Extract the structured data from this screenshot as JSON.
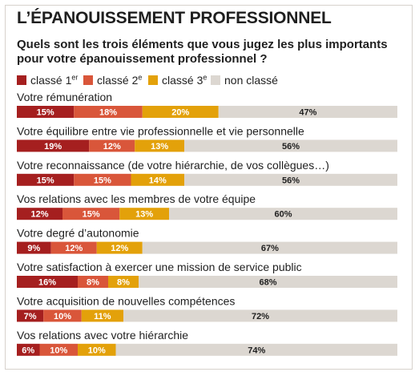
{
  "title": "L’ÉPANOUISSEMENT PROFESSIONNEL",
  "subtitle": "Quels sont les trois éléments que vous jugez les plus importants pour votre épanouissement professionnel ?",
  "legend": [
    {
      "name": "classé 1",
      "sup": "er",
      "color": "#a51f1f"
    },
    {
      "name": "classé 2",
      "sup": "e",
      "color": "#d9563a"
    },
    {
      "name": "classé 3",
      "sup": "e",
      "color": "#e3a10a"
    },
    {
      "name": "non classé",
      "sup": "",
      "color": "#dcd7d1"
    }
  ],
  "chart_data": {
    "type": "bar",
    "orientation": "horizontal",
    "stacked": true,
    "value_unit": "%",
    "categories": [
      "Votre rémunération",
      "Votre équilibre entre vie professionnelle et vie personnelle",
      "Votre reconnaissance (de votre hiérarchie, de vos collègues…)",
      "Vos relations avec les membres de votre équipe",
      "Votre degré d’autonomie",
      "Votre satisfaction à exercer une mission de service public",
      "Votre acquisition de nouvelles compétences",
      "Vos relations avec votre hiérarchie"
    ],
    "series": [
      {
        "name": "classé 1er",
        "values": [
          15,
          19,
          15,
          12,
          9,
          16,
          7,
          6
        ]
      },
      {
        "name": "classé 2e",
        "values": [
          18,
          12,
          15,
          15,
          12,
          8,
          10,
          10
        ]
      },
      {
        "name": "classé 3e",
        "values": [
          20,
          13,
          14,
          13,
          12,
          8,
          11,
          10
        ]
      },
      {
        "name": "non classé",
        "values": [
          47,
          56,
          56,
          60,
          67,
          68,
          72,
          74
        ]
      }
    ],
    "bar_labels": [
      [
        "15%",
        "18%",
        "20%",
        "47%"
      ],
      [
        "19%",
        "12%",
        "13%",
        "56%"
      ],
      [
        "15%",
        "15%",
        "14%",
        "56%"
      ],
      [
        "12%",
        "15%",
        "13%",
        "60%"
      ],
      [
        "9%",
        "12%",
        "12%",
        "67%"
      ],
      [
        "16%",
        "8%",
        "8%",
        "68%"
      ],
      [
        "7%",
        "10%",
        "11%",
        "72%"
      ],
      [
        "6%",
        "10%",
        "10%",
        "74%"
      ]
    ],
    "xlim": [
      0,
      100
    ],
    "legend_position": "top-left",
    "grid": false
  }
}
